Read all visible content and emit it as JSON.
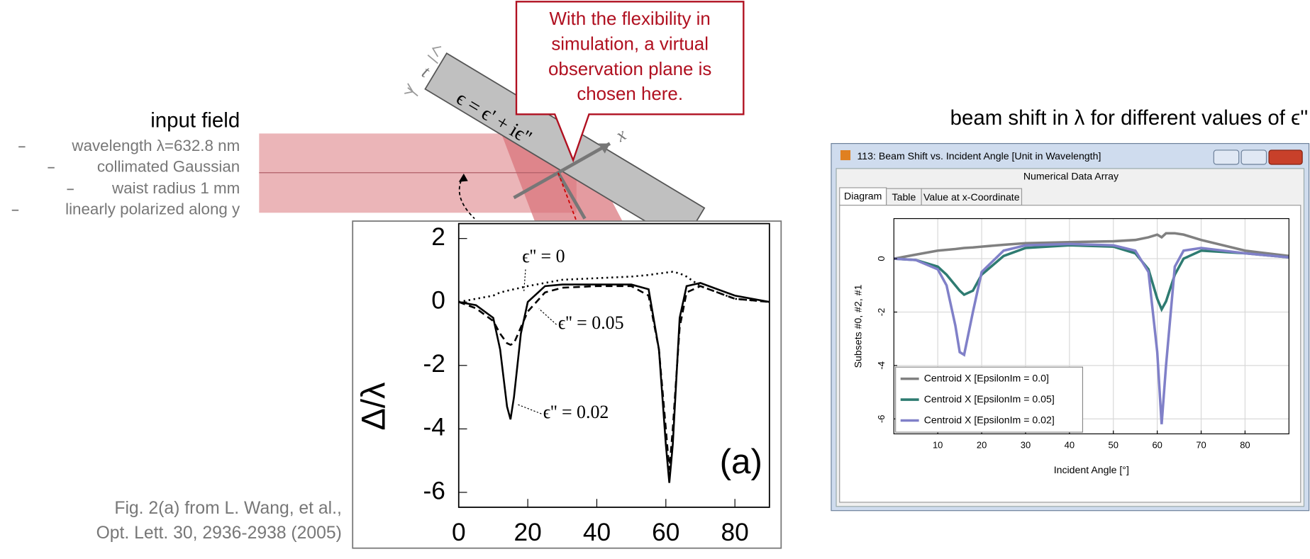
{
  "slide": {
    "input_title": "input field",
    "input_items": [
      "wavelength λ=632.8 nm",
      "collimated Gaussian",
      "waist radius 1 mm",
      "linearly polarized along y"
    ],
    "callout": [
      "With the flexibility in",
      "simulation, a virtual",
      "observation plane is",
      "chosen here."
    ],
    "diagram_labels": {
      "epsilon": "ϵ = ϵ' + iϵ''",
      "thickness": "t",
      "axis": "x"
    },
    "caption": [
      "Fig. 2(a) from L. Wang, et al.,",
      "Opt. Lett. 30, 2936-2938 (2005)"
    ],
    "window": {
      "title": "113: Beam Shift vs. Incident Angle [Unit in Wavelength]",
      "header": "Numerical Data Array",
      "tabs": [
        "Diagram",
        "Table",
        "Value at x-Coordinate"
      ]
    }
  },
  "chart_data": [
    {
      "type": "line",
      "y_label": "Δ/λ",
      "annotation": "(a)",
      "x": [
        0,
        5,
        10,
        12,
        14,
        15,
        16,
        18,
        20,
        25,
        30,
        40,
        50,
        55,
        58,
        60,
        61,
        62,
        64,
        66,
        70,
        80,
        90
      ],
      "series": [
        {
          "name": "ϵ'' = 0",
          "color": "#000000",
          "line_style": "dotted",
          "values": [
            0,
            0.1,
            0.2,
            0.3,
            0.35,
            0.38,
            0.4,
            0.45,
            0.5,
            0.6,
            0.7,
            0.75,
            0.8,
            0.85,
            0.9,
            0.92,
            0.95,
            0.95,
            0.9,
            0.8,
            0.5,
            0.1,
            0
          ]
        },
        {
          "name": "ϵ'' = 0.05",
          "color": "#000000",
          "line_style": "dashed",
          "values": [
            0,
            -0.2,
            -0.6,
            -1.0,
            -1.3,
            -1.35,
            -1.3,
            -0.8,
            -0.3,
            0.3,
            0.45,
            0.5,
            0.5,
            0.2,
            -1.5,
            -4,
            -5.3,
            -4,
            -0.8,
            0.3,
            0.5,
            0.1,
            0
          ]
        },
        {
          "name": "ϵ'' = 0.02",
          "color": "#000000",
          "line_style": "solid",
          "values": [
            0,
            -0.1,
            -0.5,
            -1.5,
            -3.3,
            -3.7,
            -3.0,
            -1.0,
            0,
            0.5,
            0.55,
            0.55,
            0.55,
            0.4,
            -1.5,
            -4.5,
            -5.7,
            -4.5,
            -0.5,
            0.5,
            0.6,
            0.2,
            0
          ]
        }
      ],
      "xlim": [
        0,
        90
      ],
      "ylim": [
        -6.47,
        2.47
      ],
      "xticks": [
        0,
        20,
        40,
        60,
        80
      ],
      "yticks": [
        2,
        0,
        -2,
        -4,
        -6
      ]
    },
    {
      "type": "line",
      "title": "beam shift in λ for different values of ϵ''",
      "x_label": "Incident Angle [°]",
      "y_label": "Subsets #0, #2, #1",
      "x": [
        0,
        5,
        10,
        12,
        14,
        15,
        16,
        18,
        20,
        25,
        30,
        40,
        50,
        55,
        58,
        60,
        61,
        62,
        64,
        66,
        70,
        80,
        90
      ],
      "series": [
        {
          "name": "Centroid X [EpsilonIm = 0.0]",
          "color": "#808080",
          "line_style": "solid",
          "values": [
            0,
            0.15,
            0.3,
            0.33,
            0.36,
            0.38,
            0.4,
            0.42,
            0.45,
            0.52,
            0.58,
            0.62,
            0.65,
            0.7,
            0.8,
            0.9,
            0.8,
            0.95,
            0.95,
            0.9,
            0.7,
            0.3,
            0.1
          ]
        },
        {
          "name": "Centroid X [EpsilonIm = 0.05]",
          "color": "#2e7b71",
          "line_style": "solid",
          "values": [
            0,
            -0.05,
            -0.3,
            -0.6,
            -1.0,
            -1.2,
            -1.35,
            -1.2,
            -0.6,
            0.1,
            0.4,
            0.5,
            0.45,
            0.2,
            -0.4,
            -1.5,
            -1.9,
            -1.6,
            -0.6,
            0,
            0.3,
            0.2,
            0.05
          ]
        },
        {
          "name": "Centroid X [EpsilonIm = 0.02]",
          "color": "#8080c8",
          "line_style": "solid",
          "values": [
            0,
            -0.05,
            -0.4,
            -1.0,
            -2.5,
            -3.5,
            -3.6,
            -2.0,
            -0.5,
            0.3,
            0.5,
            0.55,
            0.5,
            0.3,
            -0.5,
            -3.5,
            -6.2,
            -4.0,
            -0.3,
            0.3,
            0.4,
            0.2,
            0.05
          ]
        }
      ],
      "xlim": [
        0,
        90
      ],
      "ylim": [
        -6.56,
        1.5
      ],
      "xticks": [
        10,
        20,
        30,
        40,
        50,
        60,
        70,
        80
      ],
      "yticks": [
        0,
        -2,
        -4,
        -6
      ],
      "grid": true,
      "legend": "lower left"
    }
  ]
}
